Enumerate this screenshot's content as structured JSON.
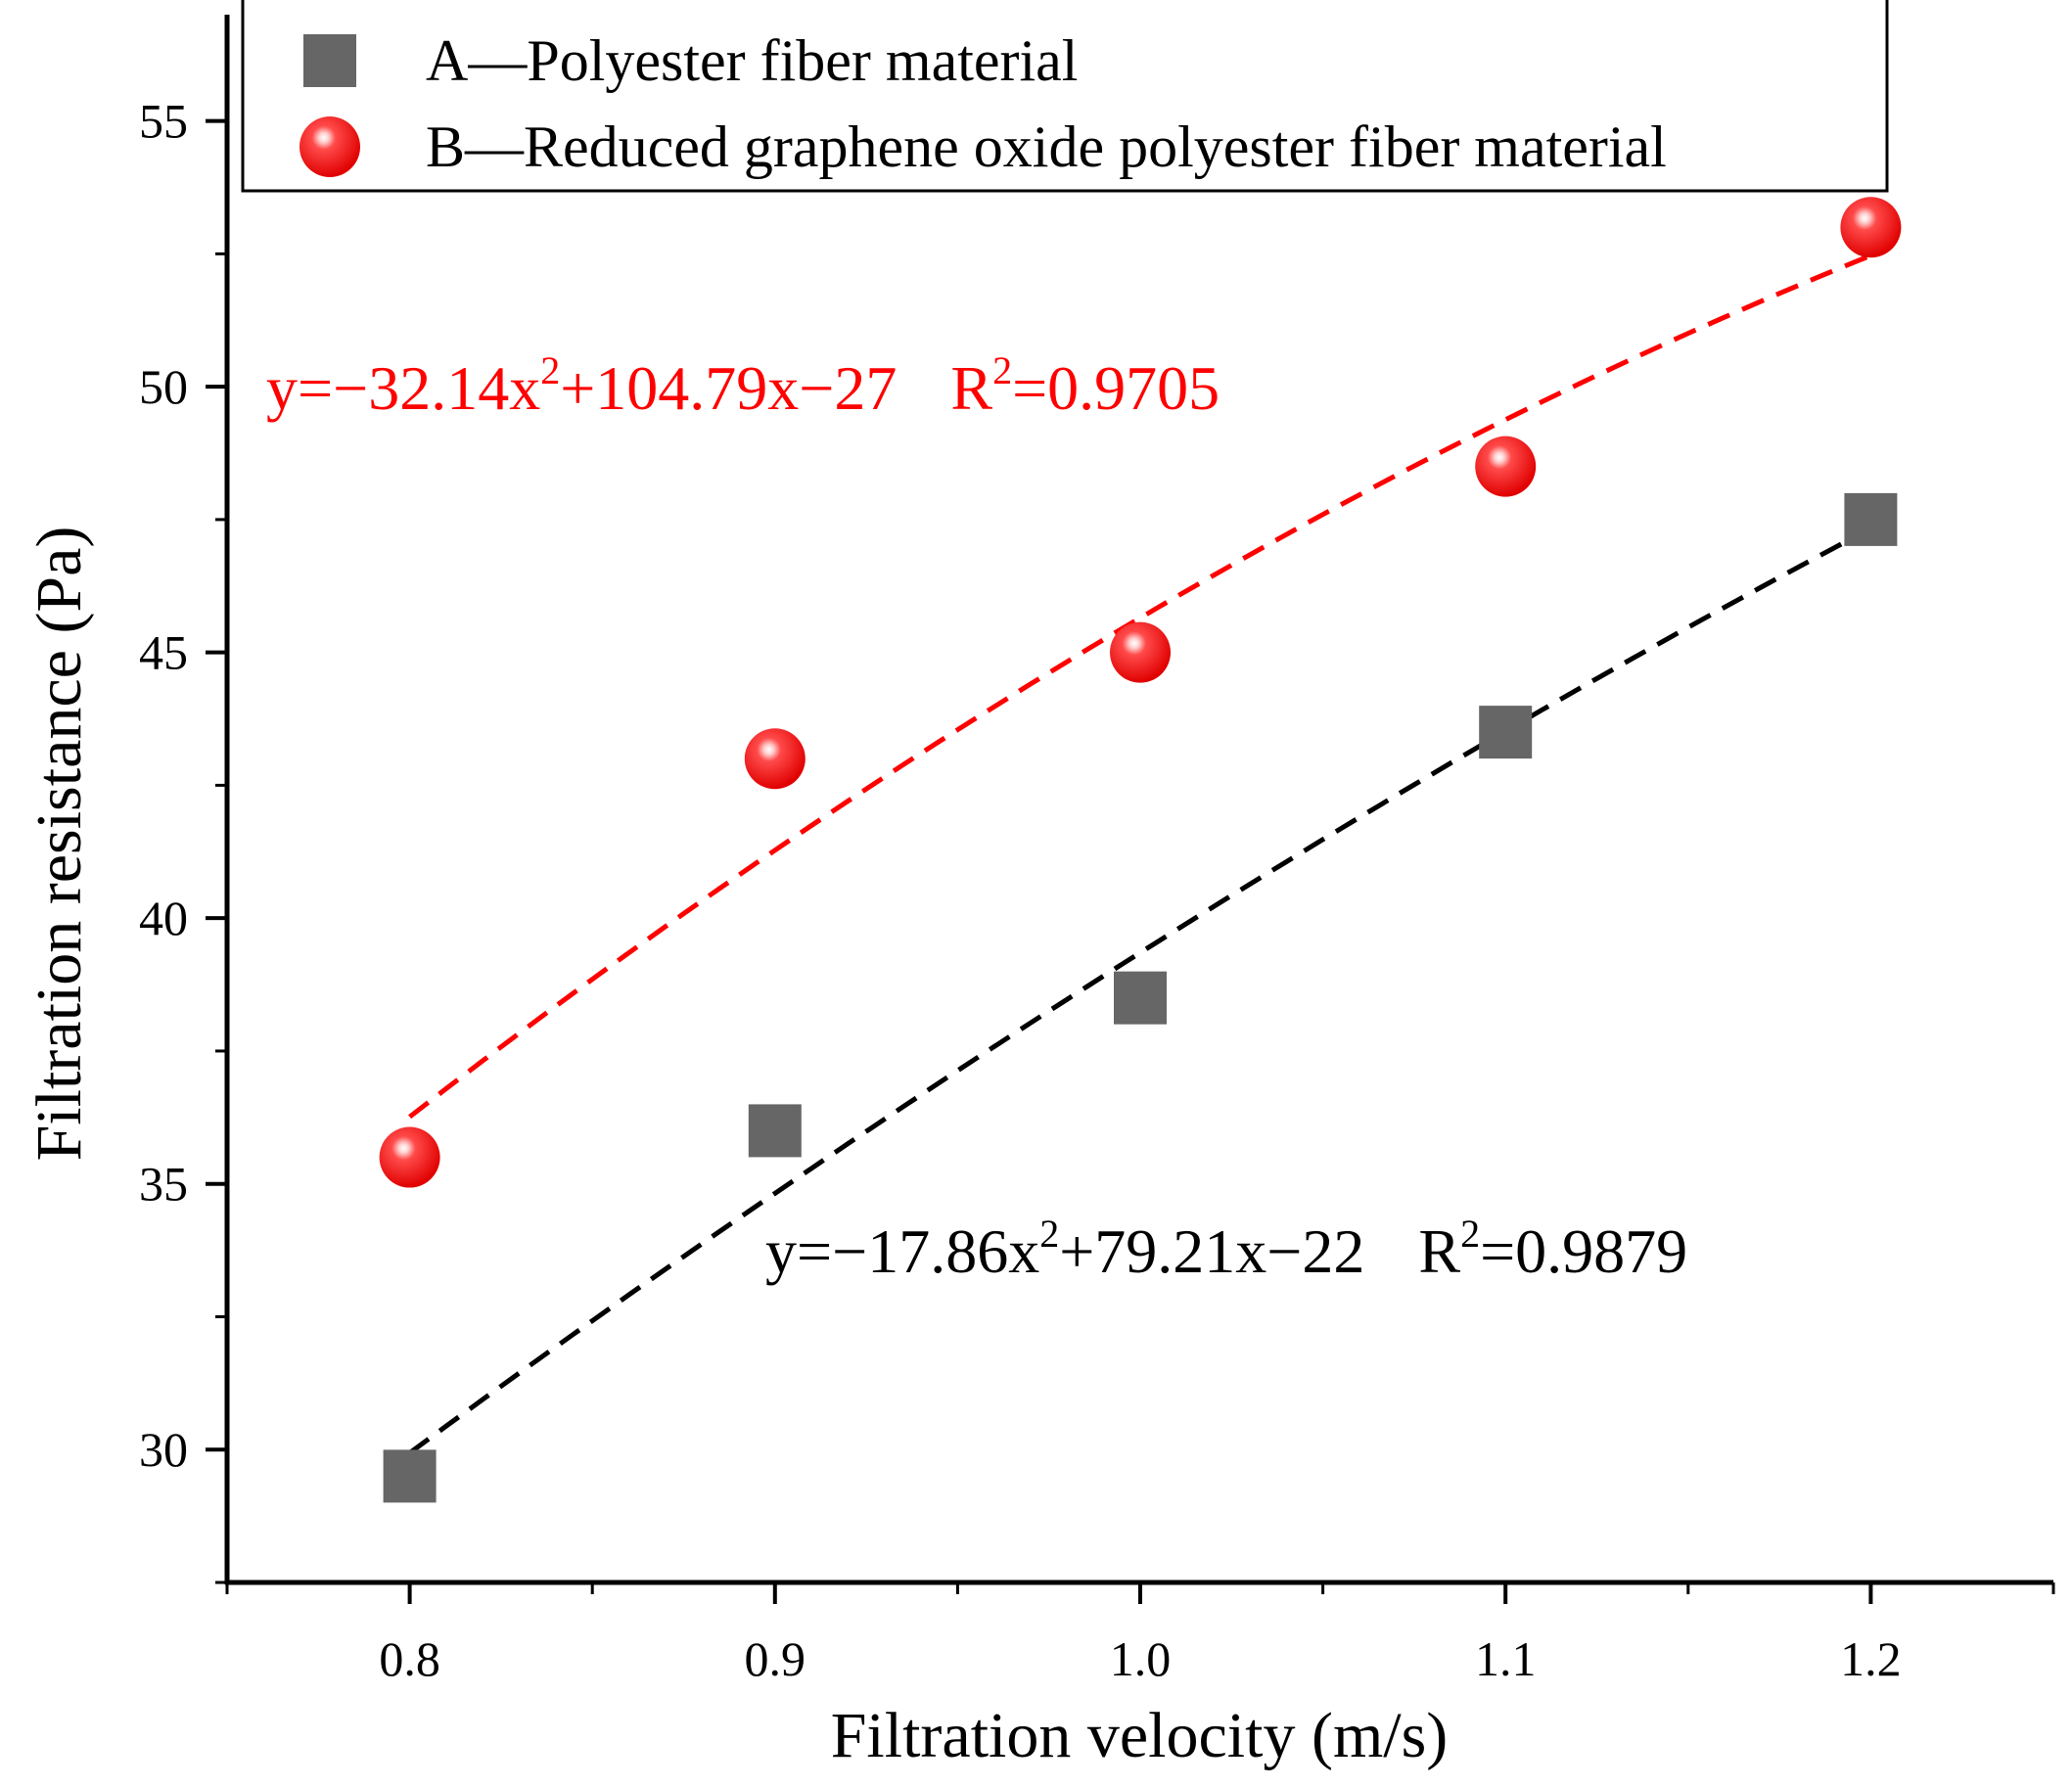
{
  "chart_data": {
    "type": "scatter",
    "title": "",
    "xlabel": "Filtration velocity (m/s)",
    "ylabel": "Filtration resistance (Pa)",
    "xlim": [
      0.75,
      1.25
    ],
    "ylim": [
      27.5,
      57
    ],
    "x_ticks": [
      0.8,
      0.9,
      1.0,
      1.1,
      1.2
    ],
    "x_tick_labels": [
      "0.8",
      "0.9",
      "1.0",
      "1.1",
      "1.2"
    ],
    "y_ticks": [
      30,
      35,
      40,
      45,
      50,
      55
    ],
    "y_tick_labels": [
      "30",
      "35",
      "40",
      "45",
      "50",
      "55"
    ],
    "grid": false,
    "legend_position": "top",
    "series": [
      {
        "name": "A—Polyester fiber material",
        "marker": "square",
        "color": "#666666",
        "x": [
          0.8,
          0.9,
          1.0,
          1.1,
          1.2
        ],
        "y": [
          29.5,
          36.0,
          38.5,
          43.5,
          47.5
        ],
        "fit": {
          "coefficients": [
            -17.86,
            79.21,
            -22
          ],
          "color": "#000000",
          "style": "dashed",
          "equation": {
            "y_part": "y=−17.86x",
            "sup": "2",
            "rest": "+79.21x−22",
            "r_label": "R",
            "r_sup": "2",
            "r_value": "=0.9879"
          }
        }
      },
      {
        "name": "B—Reduced graphene oxide polyester fiber material",
        "marker": "sphere",
        "color": "#ff2020",
        "x": [
          0.8,
          0.9,
          1.0,
          1.1,
          1.2
        ],
        "y": [
          35.5,
          43.0,
          45.0,
          48.5,
          53.0
        ],
        "fit": {
          "coefficients": [
            -32.14,
            104.79,
            -27
          ],
          "color": "#ff0000",
          "style": "dashed",
          "equation": {
            "y_part": "y=−32.14x",
            "sup": "2",
            "rest": "+104.79x−27",
            "r_label": "R",
            "r_sup": "2",
            "r_value": "=0.9705"
          }
        }
      }
    ]
  }
}
